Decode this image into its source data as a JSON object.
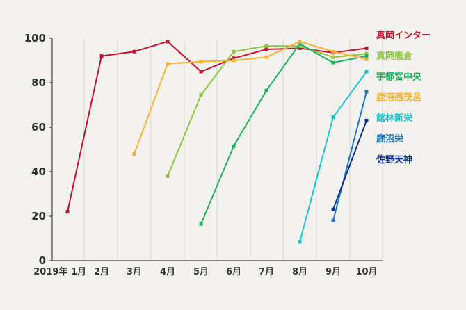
{
  "chart_data": {
    "type": "line",
    "categories": [
      "2019年 1月",
      "2月",
      "3月",
      "4月",
      "5月",
      "6月",
      "7月",
      "8月",
      "9月",
      "10月"
    ],
    "ylim": [
      0,
      100
    ],
    "yticks": [
      0,
      20,
      40,
      60,
      80,
      100
    ],
    "grid": "vertical",
    "legend": "right",
    "series": [
      {
        "name": "真岡インター",
        "color": "#c8102e",
        "values": [
          22,
          92,
          94,
          98.5,
          85,
          91,
          95,
          95.5,
          93.5,
          95.5
        ]
      },
      {
        "name": "真岡熊倉",
        "color": "#8cc63f",
        "values": [
          null,
          null,
          null,
          38,
          74.5,
          94,
          96.5,
          96.5,
          91.5,
          93
        ]
      },
      {
        "name": "宇都宮中央",
        "color": "#1bb35b",
        "values": [
          null,
          null,
          null,
          null,
          16.5,
          51.5,
          76.5,
          97.5,
          89,
          92
        ]
      },
      {
        "name": "鹿沼西茂呂",
        "color": "#fbb034",
        "values": [
          null,
          null,
          48,
          88.5,
          89.5,
          90,
          91.5,
          98.5,
          94,
          90.5
        ]
      },
      {
        "name": "館林新栄",
        "color": "#19c6d2",
        "values": [
          null,
          null,
          null,
          null,
          null,
          null,
          null,
          8.5,
          64.5,
          85
        ]
      },
      {
        "name": "鹿沼栄",
        "color": "#1b78c8",
        "values": [
          null,
          null,
          null,
          null,
          null,
          null,
          null,
          null,
          18,
          76
        ]
      },
      {
        "name": "佐野天神",
        "color": "#0a2d9e",
        "values": [
          null,
          null,
          null,
          null,
          null,
          null,
          null,
          null,
          23,
          63
        ]
      }
    ]
  }
}
